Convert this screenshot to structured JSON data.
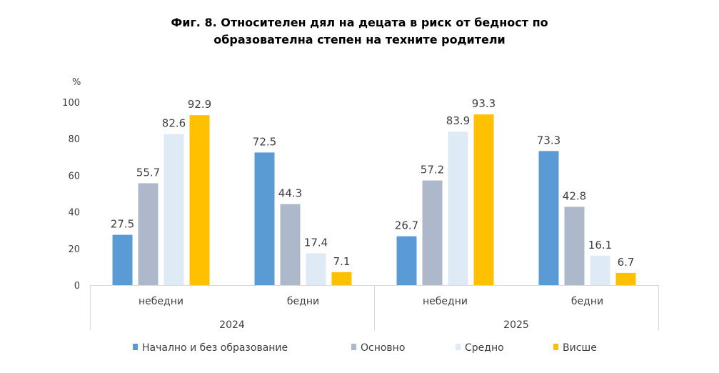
{
  "chart_data": {
    "type": "bar",
    "title_line1": "Фиг. 8. Относителен дял на децата в риск от бедност по",
    "title_line2": "образователна степен на техните родители",
    "ylabel": "%",
    "ylim": [
      0,
      100
    ],
    "yticks": [
      "0",
      "20",
      "40",
      "60",
      "80",
      "100"
    ],
    "groups": [
      {
        "year": "2024",
        "categories": [
          "небедни",
          "бедни"
        ]
      },
      {
        "year": "2025",
        "categories": [
          "небедни",
          "бедни"
        ]
      }
    ],
    "series": [
      {
        "name": "Начално и без образование",
        "color": "#5b9bd5",
        "values": [
          27.5,
          72.5,
          26.7,
          73.3
        ],
        "labels": [
          "27.5",
          "72.5",
          "26.7",
          "73.3"
        ]
      },
      {
        "name": "Основно",
        "color": "#adb9ca",
        "values": [
          55.7,
          44.3,
          57.2,
          42.8
        ],
        "labels": [
          "55.7",
          "44.3",
          "57.2",
          "42.8"
        ]
      },
      {
        "name": "Средно",
        "color": "#deebf7",
        "values": [
          82.6,
          17.4,
          83.9,
          16.1
        ],
        "labels": [
          "82.6",
          "17.4",
          "83.9",
          "16.1"
        ]
      },
      {
        "name": "Висше",
        "color": "#ffc000",
        "values": [
          92.9,
          7.1,
          93.3,
          6.7
        ],
        "labels": [
          "92.9",
          "7.1",
          "93.3",
          "6.7"
        ]
      }
    ],
    "grid": false,
    "legend": "bottom"
  }
}
